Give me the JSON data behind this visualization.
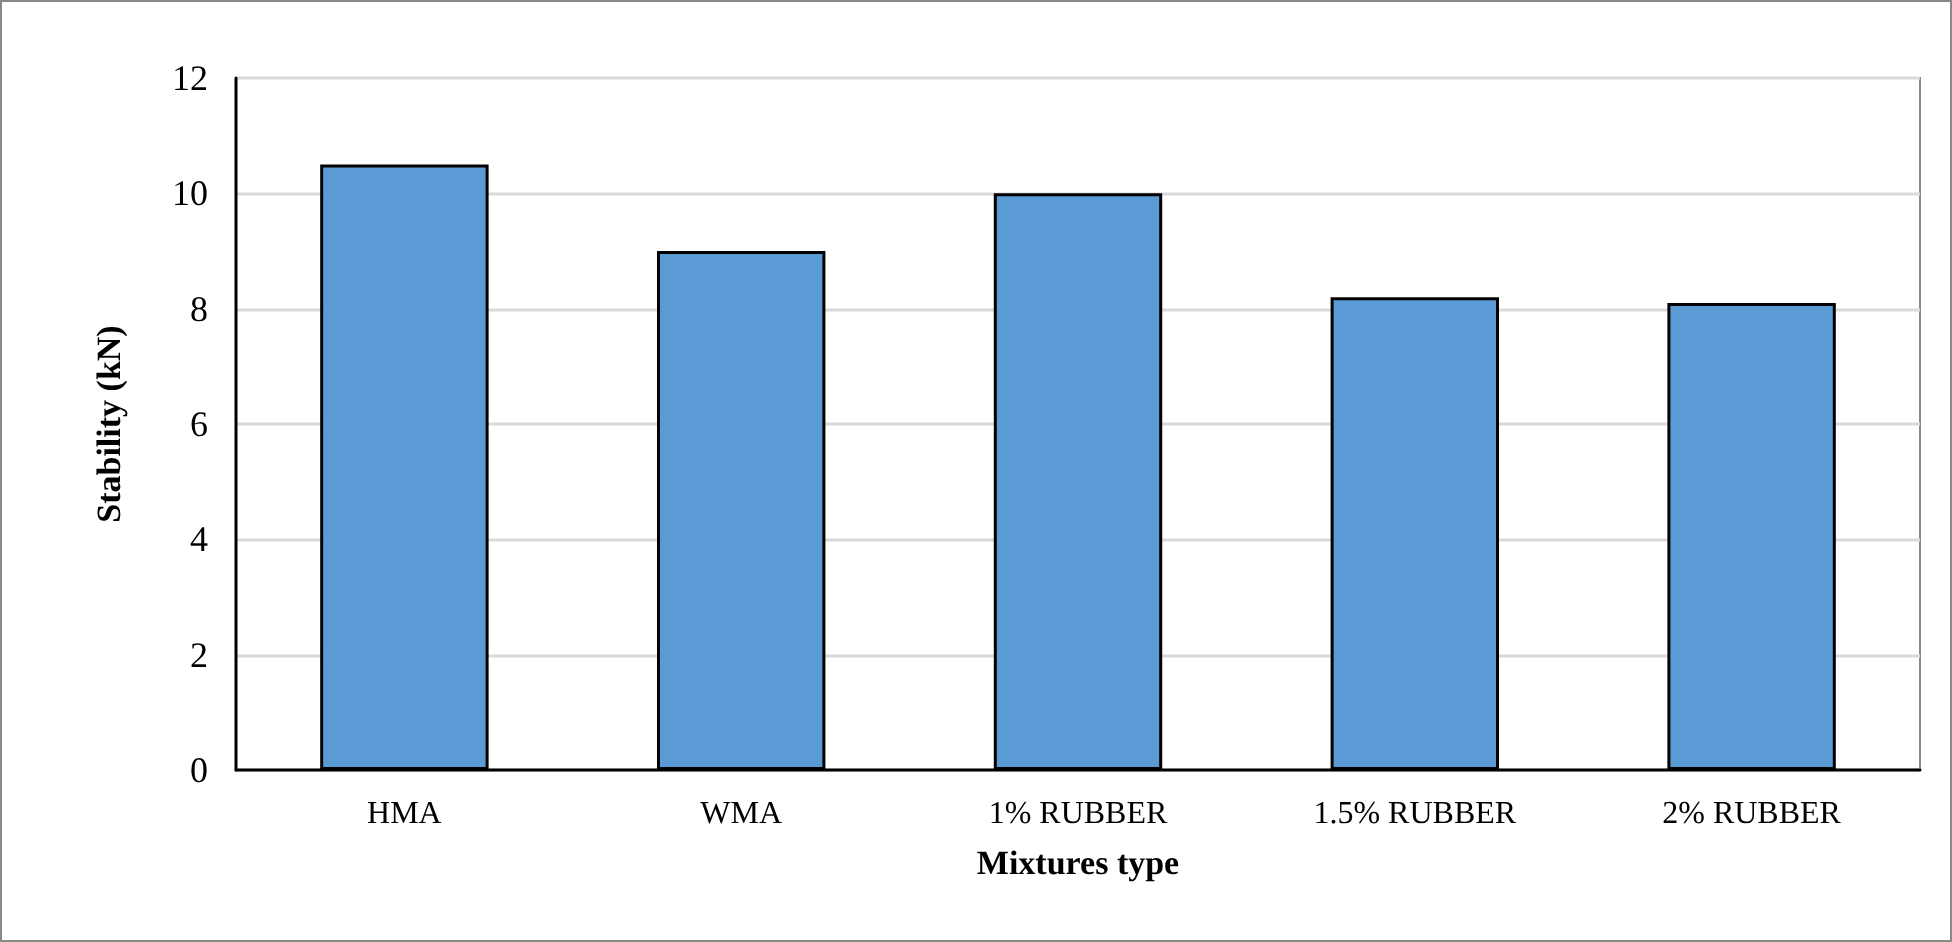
{
  "chart_data": {
    "type": "bar",
    "xlabel": "Mixtures type",
    "ylabel": "Stability (kN)",
    "categories": [
      "HMA",
      "WMA",
      "1% RUBBER",
      "1.5% RUBBER",
      "2% RUBBER"
    ],
    "values": [
      10.5,
      9.0,
      10.0,
      8.2,
      8.1
    ],
    "color": "#5b9bd5",
    "ylim": [
      0,
      12
    ],
    "yticks": [
      0,
      2,
      4,
      6,
      8,
      10,
      12
    ],
    "grid": "y"
  }
}
